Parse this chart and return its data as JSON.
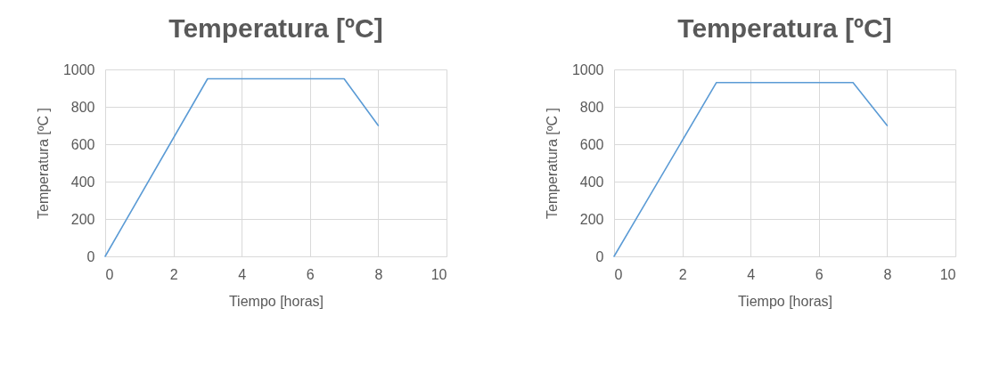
{
  "chart_data": [
    {
      "type": "line",
      "title": "Temperatura [ºC]",
      "xlabel": "Tiempo [horas]",
      "ylabel": "Temperatura [ºC ]",
      "x": [
        0,
        3,
        7,
        8
      ],
      "series": [
        {
          "color": "#5b9bd5",
          "values": [
            0,
            950,
            950,
            700
          ]
        }
      ],
      "xlim": [
        0,
        10
      ],
      "xticks": [
        0,
        2,
        4,
        6,
        8,
        10
      ],
      "ylim": [
        0,
        1000
      ],
      "yticks": [
        0,
        200,
        400,
        600,
        800,
        1000
      ],
      "grid": true,
      "marker": "none",
      "line_style": "solid"
    },
    {
      "type": "line",
      "title": "Temperatura [ºC]",
      "xlabel": "Tiempo [horas]",
      "ylabel": "Temperatura [ºC ]",
      "x": [
        0,
        3,
        7,
        8
      ],
      "series": [
        {
          "color": "#5b9bd5",
          "values": [
            0,
            930,
            930,
            700
          ]
        }
      ],
      "xlim": [
        0,
        10
      ],
      "xticks": [
        0,
        2,
        4,
        6,
        8,
        10
      ],
      "ylim": [
        0,
        1000
      ],
      "yticks": [
        0,
        200,
        400,
        600,
        800,
        1000
      ],
      "grid": true,
      "marker": "none",
      "line_style": "solid"
    }
  ]
}
